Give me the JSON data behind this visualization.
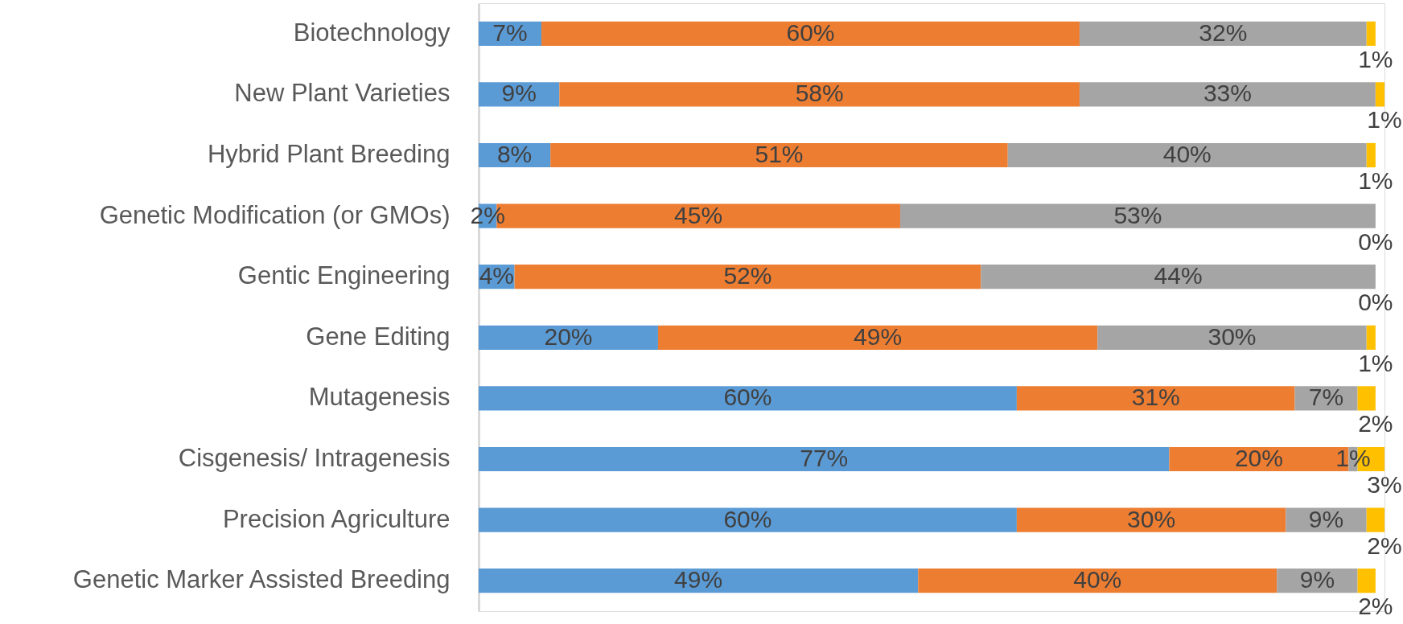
{
  "chart_data": {
    "type": "bar",
    "orientation": "horizontal",
    "stacked": true,
    "categories": [
      "Biotechnology",
      "New Plant Varieties",
      "Hybrid Plant Breeding",
      "Genetic Modification (or GMOs)",
      "Gentic Engineering",
      "Gene Editing",
      "Mutagenesis",
      "Cisgenesis/ Intragenesis",
      "Precision Agriculture",
      "Genetic Marker Assisted Breeding"
    ],
    "series": [
      {
        "color": "#5b9bd5",
        "values": [
          7,
          9,
          8,
          2,
          4,
          20,
          60,
          77,
          60,
          49
        ],
        "value_labels": [
          "7%",
          "9%",
          "8%",
          "2%",
          "4%",
          "20%",
          "60%",
          "77%",
          "60%",
          "49%"
        ]
      },
      {
        "color": "#ed7d31",
        "values": [
          60,
          58,
          51,
          45,
          52,
          49,
          31,
          20,
          30,
          40
        ],
        "value_labels": [
          "60%",
          "58%",
          "51%",
          "45%",
          "52%",
          "49%",
          "31%",
          "20%",
          "30%",
          "40%"
        ]
      },
      {
        "color": "#a5a5a5",
        "values": [
          32,
          33,
          40,
          53,
          44,
          30,
          7,
          1,
          9,
          9
        ],
        "value_labels": [
          "32%",
          "33%",
          "40%",
          "53%",
          "44%",
          "30%",
          "7%",
          "1%",
          "9%",
          "9%"
        ]
      },
      {
        "color": "#ffc000",
        "values": [
          1,
          1,
          1,
          0,
          0,
          1,
          2,
          3,
          2,
          2
        ],
        "value_labels": [
          "1%",
          "1%",
          "1%",
          "0%",
          "0%",
          "1%",
          "2%",
          "3%",
          "2%",
          "2%"
        ]
      }
    ],
    "xlim": [
      0,
      101
    ],
    "tick_labels": "y"
  }
}
